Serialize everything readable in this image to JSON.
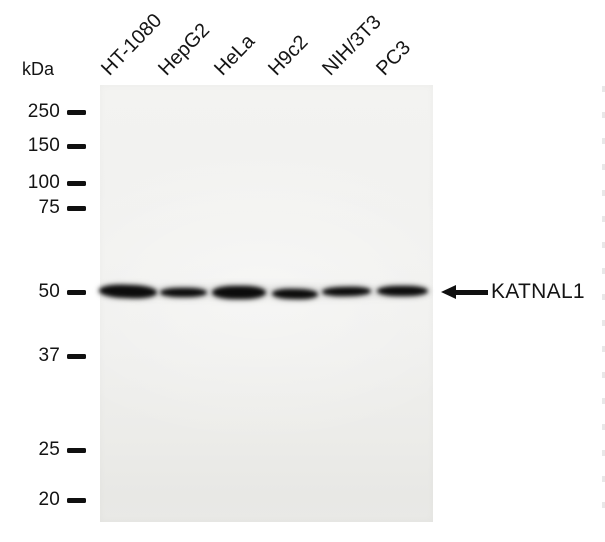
{
  "figure": {
    "type": "western-blot",
    "unit_label": "kDa",
    "markers": [
      "250",
      "150",
      "100",
      "75",
      "50",
      "37",
      "25",
      "20"
    ],
    "lanes": [
      "HT-1080",
      "HepG2",
      "HeLa",
      "H9c2",
      "NIH/3T3",
      "PC3"
    ],
    "annotation": {
      "label": "KATNAL1",
      "arrow_icon": "left-arrow"
    },
    "band": {
      "kda": "50",
      "present_in_lanes": [
        "HT-1080",
        "HepG2",
        "HeLa",
        "H9c2",
        "NIH/3T3",
        "PC3"
      ],
      "relative_intensity": [
        "strong",
        "medium",
        "strong",
        "strong",
        "medium",
        "medium"
      ]
    },
    "colors": {
      "band": "#0c0c0c",
      "membrane": "#f0f0ee",
      "text": "#141414",
      "page": "#ffffff"
    }
  }
}
